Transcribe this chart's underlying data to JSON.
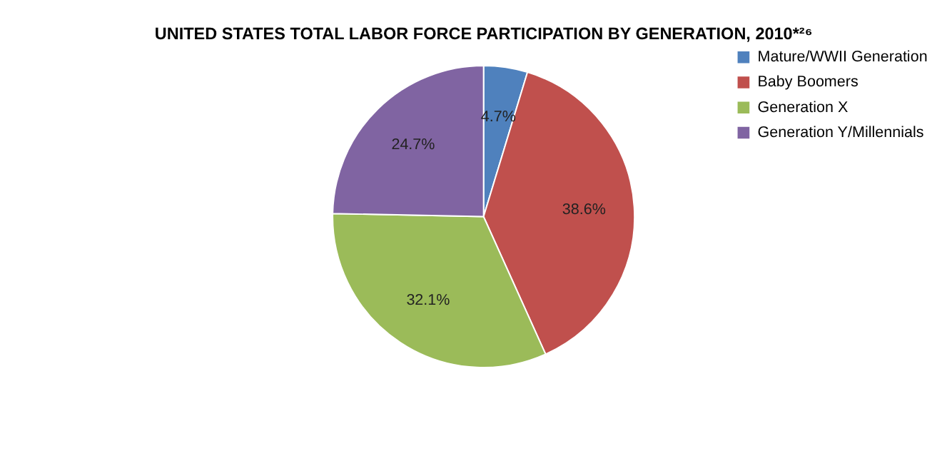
{
  "chart_data": {
    "type": "pie",
    "title": "UNITED STATES TOTAL LABOR FORCE PARTICIPATION BY GENERATION, 2010*²⁶",
    "categories": [
      "Mature/WWII Generation",
      "Baby Boomers",
      "Generation X",
      "Generation Y/Millennials"
    ],
    "values": [
      4.7,
      38.6,
      32.1,
      24.7
    ],
    "colors": [
      "#4f81bd",
      "#c0504d",
      "#9bbb59",
      "#8064a2"
    ],
    "value_labels": [
      "4.7%",
      "38.6%",
      "32.1%",
      "24.7%"
    ],
    "legend": "right"
  }
}
